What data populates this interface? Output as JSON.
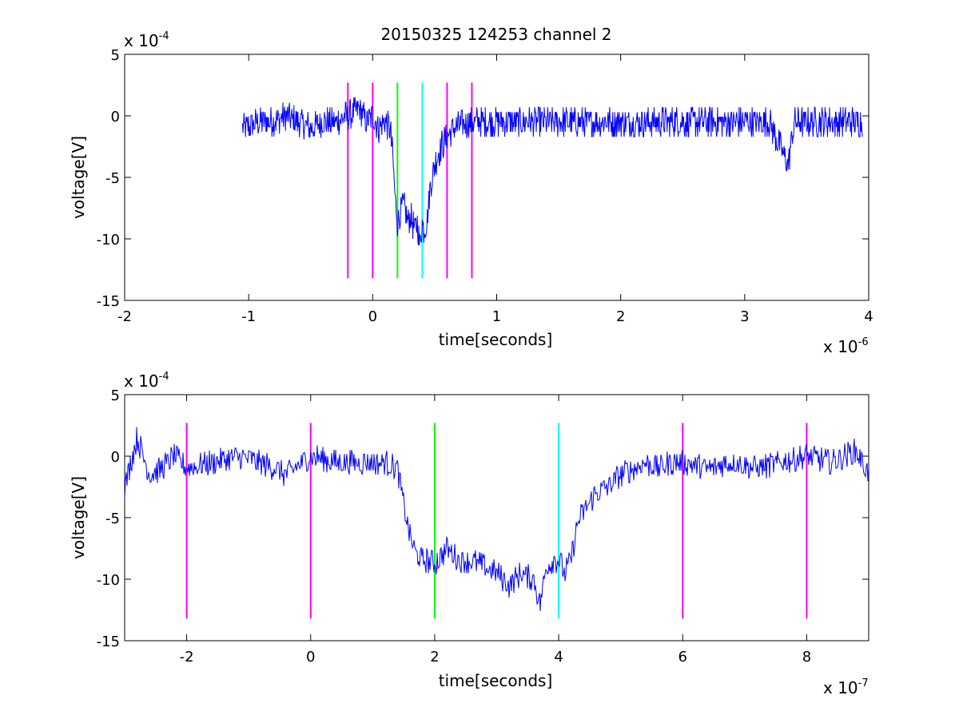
{
  "chart_data": [
    {
      "type": "line",
      "title": "20150325 124253 channel 2",
      "xlabel": "time[seconds]",
      "ylabel": "voltage[V]",
      "x_multiplier": {
        "prefix": "x 10",
        "exponent": "-6"
      },
      "y_multiplier": {
        "prefix": "x 10",
        "exponent": "-4"
      },
      "xlim": [
        -2,
        4
      ],
      "ylim": [
        -15,
        5
      ],
      "x_ticks": [
        -2,
        -1,
        0,
        1,
        2,
        3,
        4
      ],
      "y_ticks": [
        5,
        0,
        -5,
        -10,
        -15
      ],
      "x_tick_labels": [
        "-2",
        "-1",
        "0",
        "1",
        "2",
        "3",
        "4"
      ],
      "y_tick_labels": [
        "5",
        "0",
        "-5",
        "-10",
        "-15"
      ],
      "grid": false,
      "series": [
        {
          "color": "#0000ff",
          "x": [
            -1.05,
            -0.9,
            -0.8,
            -0.7,
            -0.6,
            -0.5,
            -0.4,
            -0.3,
            -0.2,
            -0.15,
            -0.1,
            -0.05,
            0.0,
            0.05,
            0.1,
            0.14,
            0.16,
            0.18,
            0.2,
            0.22,
            0.25,
            0.28,
            0.31,
            0.34,
            0.36,
            0.38,
            0.4,
            0.42,
            0.44,
            0.46,
            0.5,
            0.55,
            0.6,
            0.65,
            0.7,
            0.8,
            0.9,
            1.0,
            1.2,
            1.4,
            1.6,
            1.8,
            2.0,
            2.2,
            2.4,
            2.6,
            2.8,
            3.0,
            3.2,
            3.35,
            3.4,
            3.6,
            3.8,
            3.95
          ],
          "y": [
            -1,
            -0.5,
            -0.5,
            0,
            -0.5,
            -1,
            -0.5,
            -0.5,
            0,
            0.3,
            0.5,
            -0.5,
            0,
            -1,
            -0.5,
            -1,
            -3,
            -6.5,
            -8.7,
            -8,
            -7.2,
            -8.5,
            -8.2,
            -9.5,
            -8.5,
            -10.5,
            -8.8,
            -9.3,
            -8.5,
            -6,
            -4,
            -2.5,
            -1.8,
            -1,
            -0.8,
            -0.5,
            -0.5,
            -0.5,
            -0.5,
            -0.5,
            -0.5,
            -0.5,
            -0.5,
            -0.5,
            -0.5,
            -0.5,
            -0.5,
            -0.5,
            -0.5,
            -4,
            -0.5,
            -0.5,
            -0.5,
            -0.5
          ],
          "noise_amplitude": 1.2
        }
      ],
      "vertical_lines": [
        {
          "x": -0.2,
          "color": "#ff00ff"
        },
        {
          "x": 0,
          "color": "#ff00ff"
        },
        {
          "x": 0.2,
          "color": "#00ff00"
        },
        {
          "x": 0.4,
          "color": "#00ffff"
        },
        {
          "x": 0.6,
          "color": "#ff00ff"
        },
        {
          "x": 0.8,
          "color": "#ff00ff"
        }
      ],
      "vertical_line_range": [
        -13.2,
        2.7
      ]
    },
    {
      "type": "line",
      "title": "",
      "xlabel": "time[seconds]",
      "ylabel": "voltage[V]",
      "x_multiplier": {
        "prefix": "x 10",
        "exponent": "-7"
      },
      "y_multiplier": {
        "prefix": "x 10",
        "exponent": "-4"
      },
      "xlim": [
        -3,
        9
      ],
      "ylim": [
        -15,
        5
      ],
      "x_ticks": [
        -2,
        0,
        2,
        4,
        6,
        8
      ],
      "y_ticks": [
        5,
        0,
        -5,
        -10,
        -15
      ],
      "x_tick_labels": [
        "-2",
        "0",
        "2",
        "4",
        "6",
        "8"
      ],
      "y_tick_labels": [
        "5",
        "0",
        "-5",
        "-10",
        "-15"
      ],
      "grid": false,
      "series": [
        {
          "color": "#0000ff",
          "x": [
            -3.0,
            -2.8,
            -2.6,
            -2.4,
            -2.2,
            -2.0,
            -1.6,
            -1.2,
            -0.8,
            -0.4,
            0.0,
            0.4,
            0.8,
            1.2,
            1.4,
            1.5,
            1.6,
            1.7,
            1.8,
            1.9,
            2.0,
            2.2,
            2.4,
            2.6,
            2.8,
            3.0,
            3.2,
            3.4,
            3.6,
            3.7,
            3.8,
            3.9,
            4.0,
            4.1,
            4.2,
            4.3,
            4.4,
            4.6,
            4.8,
            5.0,
            5.2,
            5.4,
            5.6,
            5.8,
            6.0,
            6.4,
            6.8,
            7.2,
            7.6,
            8.0,
            8.4,
            8.8,
            9.0
          ],
          "y": [
            -2.5,
            1.5,
            -1.5,
            -1,
            0,
            -1,
            -0.5,
            0,
            -0.5,
            -1.5,
            0,
            -0.5,
            -0.5,
            -0.5,
            -1,
            -4,
            -6.5,
            -8,
            -8.5,
            -8.5,
            -8.8,
            -7.5,
            -8.5,
            -8.5,
            -9,
            -9.5,
            -10.5,
            -9.5,
            -10,
            -12,
            -9,
            -8.5,
            -8.5,
            -9.5,
            -8.5,
            -5.5,
            -4.5,
            -3,
            -2.5,
            -1.5,
            -1,
            -0.5,
            -1,
            -0.5,
            -0.5,
            -1,
            -0.5,
            -1,
            -0.5,
            0,
            -0.5,
            0.5,
            -1.5
          ],
          "noise_amplitude": 1.0
        }
      ],
      "vertical_lines": [
        {
          "x": -2,
          "color": "#ff00ff"
        },
        {
          "x": 0,
          "color": "#ff00ff"
        },
        {
          "x": 2,
          "color": "#00ff00"
        },
        {
          "x": 4,
          "color": "#00ffff"
        },
        {
          "x": 6,
          "color": "#ff00ff"
        },
        {
          "x": 8,
          "color": "#ff00ff"
        }
      ],
      "vertical_line_range": [
        -13.2,
        2.7
      ]
    }
  ]
}
